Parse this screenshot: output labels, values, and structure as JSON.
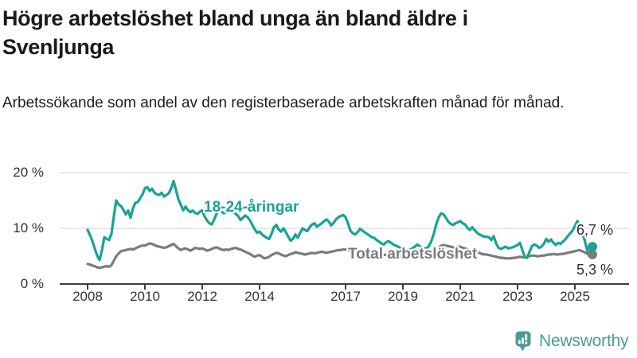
{
  "title": "Högre arbetslöshet bland unga än bland äldre i Svenljunga",
  "title_lines": [
    "Högre arbetslöshet bland unga än bland äldre i",
    "Svenljunga"
  ],
  "subtitle": "Arbetssökande som andel av den registerbaserade arbetskraften månad för månad.",
  "branding": {
    "logo_text": "Newsworthy"
  },
  "colors": {
    "youth_line": "#17a398",
    "total_line": "#7b7b7b",
    "axis": "#3d3d3d",
    "grid": "#e1e1e1",
    "tick_text": "#333333",
    "logo": "#4a9b95",
    "title_text": "#1a1a1a"
  },
  "chart_data": {
    "type": "line",
    "title": "Högre arbetslöshet bland unga än bland äldre i Svenljunga",
    "subtitle": "Arbetssökande som andel av den registerbaserade arbetskraften månad för månad.",
    "x_unit": "month",
    "x_start_year": 2008,
    "points_per_year": 12,
    "x_tick_labels": [
      "2008",
      "2010",
      "2012",
      "2014",
      "2017",
      "2019",
      "2021",
      "2023",
      "2025"
    ],
    "y_ticks": [
      {
        "value": 20,
        "label": "20 %"
      },
      {
        "value": 10,
        "label": "10 %"
      },
      {
        "value": 0,
        "label": "0 %"
      }
    ],
    "ylim": [
      0,
      20
    ],
    "grid": "horizontal-only",
    "legend_position": "inline-labels",
    "series": [
      {
        "name": "18-24-åringar",
        "color": "#17a398",
        "last_value_label": "6,7 %",
        "last_value": 6.7,
        "values": [
          9.7,
          8.8,
          7.7,
          6.4,
          5.1,
          4.3,
          6.0,
          8.4,
          8.1,
          7.9,
          9.0,
          12.2,
          15.0,
          14.3,
          14.0,
          13.3,
          12.5,
          13.2,
          11.9,
          13.6,
          14.6,
          14.7,
          15.4,
          16.1,
          17.2,
          17.4,
          16.7,
          17.1,
          16.4,
          16.1,
          16.0,
          16.4,
          15.7,
          16.0,
          16.3,
          17.2,
          18.5,
          16.9,
          15.2,
          14.3,
          13.2,
          13.9,
          13.3,
          12.9,
          13.2,
          12.8,
          12.6,
          13.0,
          13.2,
          12.1,
          11.4,
          10.9,
          10.7,
          11.6,
          12.6,
          13.4,
          13.0,
          12.7,
          12.9,
          13.2,
          13.4,
          13.0,
          12.6,
          12.2,
          11.5,
          11.9,
          12.3,
          12.0,
          11.4,
          10.6,
          9.8,
          9.2,
          9.4,
          8.9,
          8.6,
          8.3,
          8.1,
          9.0,
          10.2,
          10.6,
          9.8,
          9.4,
          10.0,
          9.3,
          8.5,
          7.8,
          8.1,
          8.9,
          8.3,
          9.2,
          10.0,
          9.7,
          9.5,
          10.2,
          10.7,
          10.9,
          10.3,
          10.6,
          10.9,
          11.3,
          11.6,
          11.2,
          10.5,
          11.0,
          11.6,
          12.0,
          12.2,
          12.4,
          12.0,
          10.9,
          9.6,
          9.1,
          8.9,
          9.3,
          9.9,
          9.6,
          9.3,
          9.0,
          8.7,
          8.4,
          8.3,
          7.9,
          7.6,
          7.3,
          7.1,
          7.5,
          7.7,
          7.4,
          7.1,
          6.9,
          6.7,
          6.5,
          6.4,
          6.2,
          6.1,
          6.2,
          6.4,
          6.7,
          7.1,
          6.8,
          6.5,
          6.4,
          6.4,
          6.9,
          7.8,
          9.1,
          10.8,
          12.0,
          12.7,
          12.5,
          11.9,
          11.2,
          10.8,
          10.6,
          10.9,
          11.1,
          11.3,
          10.9,
          10.7,
          10.1,
          9.7,
          10.2,
          9.7,
          9.2,
          8.9,
          8.7,
          8.5,
          8.5,
          8.4,
          7.9,
          8.6,
          7.3,
          6.5,
          6.3,
          6.5,
          6.7,
          6.4,
          6.5,
          6.6,
          6.8,
          7.0,
          7.4,
          6.1,
          4.9,
          4.7,
          5.8,
          6.8,
          7.1,
          6.9,
          6.5,
          6.7,
          7.2,
          8.1,
          7.6,
          8.0,
          7.4,
          7.0,
          7.4,
          7.2,
          7.6,
          8.0,
          8.6,
          9.1,
          9.6,
          10.4,
          11.3,
          10.0,
          9.3,
          8.0,
          6.3,
          5.1,
          6.7
        ]
      },
      {
        "name": "Total arbetslöshet",
        "color": "#7b7b7b",
        "last_value_label": "5,3 %",
        "last_value": 5.3,
        "values": [
          3.6,
          3.5,
          3.3,
          3.2,
          3.0,
          2.9,
          3.0,
          3.1,
          3.2,
          3.1,
          3.4,
          4.2,
          5.0,
          5.5,
          5.9,
          6.0,
          6.1,
          6.2,
          6.3,
          6.2,
          6.4,
          6.6,
          6.8,
          6.9,
          6.9,
          7.1,
          7.3,
          7.2,
          7.0,
          6.8,
          6.7,
          6.6,
          6.5,
          6.6,
          6.8,
          7.0,
          7.2,
          6.8,
          6.4,
          6.1,
          6.3,
          6.4,
          6.2,
          6.0,
          6.2,
          6.5,
          6.4,
          6.3,
          6.4,
          6.2,
          6.0,
          6.1,
          6.3,
          6.5,
          6.6,
          6.4,
          6.2,
          6.1,
          6.2,
          6.1,
          6.3,
          6.4,
          6.5,
          6.3,
          6.2,
          6.0,
          5.8,
          5.6,
          5.4,
          5.1,
          4.9,
          5.1,
          5.2,
          4.9,
          4.6,
          4.7,
          4.9,
          5.2,
          5.4,
          5.6,
          5.5,
          5.3,
          5.1,
          5.0,
          5.2,
          5.4,
          5.5,
          5.7,
          5.6,
          5.5,
          5.4,
          5.3,
          5.4,
          5.5,
          5.6,
          5.5,
          5.6,
          5.7,
          5.8,
          5.7,
          5.6,
          5.7,
          5.8,
          5.9,
          6.0,
          6.1,
          6.1,
          6.2,
          6.2,
          6.1,
          5.9,
          5.7,
          5.8,
          5.9,
          6.0,
          5.9,
          5.8,
          5.7,
          5.6,
          5.6,
          5.5,
          5.3,
          5.2,
          5.1,
          5.2,
          5.3,
          5.2,
          5.1,
          5.0,
          4.9,
          4.9,
          5.0,
          5.0,
          4.9,
          4.9,
          5.0,
          5.1,
          5.2,
          5.2,
          5.1,
          5.0,
          5.0,
          5.1,
          5.2,
          5.3,
          5.5,
          6.0,
          6.6,
          6.9,
          7.0,
          6.9,
          6.8,
          6.7,
          6.6,
          6.6,
          6.7,
          6.7,
          6.5,
          6.4,
          6.2,
          6.1,
          6.0,
          5.9,
          5.7,
          5.6,
          5.4,
          5.3,
          5.3,
          5.2,
          5.1,
          5.0,
          4.9,
          4.8,
          4.7,
          4.7,
          4.6,
          4.6,
          4.6,
          4.7,
          4.7,
          4.8,
          4.9,
          4.8,
          4.8,
          4.9,
          5.0,
          5.1,
          5.1,
          5.0,
          5.0,
          5.1,
          5.1,
          5.2,
          5.3,
          5.3,
          5.4,
          5.3,
          5.3,
          5.4,
          5.4,
          5.5,
          5.6,
          5.7,
          5.8,
          5.9,
          6.0,
          6.1,
          5.9,
          5.7,
          5.5,
          5.2,
          5.3
        ]
      }
    ]
  }
}
